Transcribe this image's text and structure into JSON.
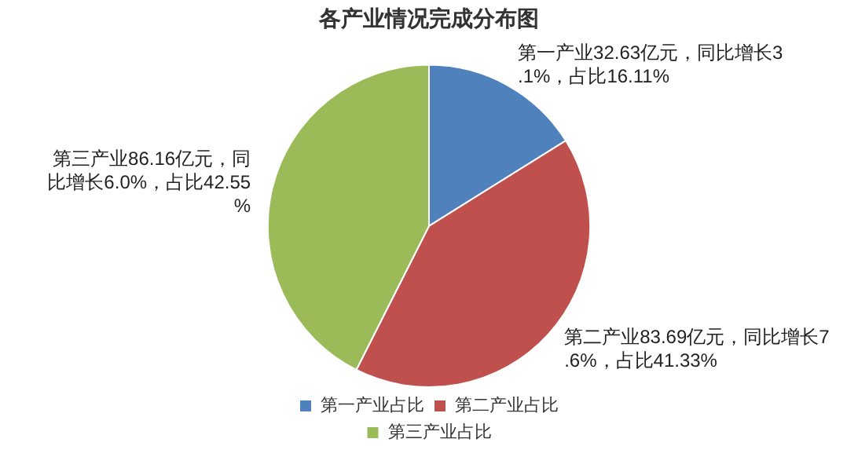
{
  "chart_data": {
    "type": "pie",
    "title": "各产业情况完成分布图",
    "categories": [
      "第一产业占比",
      "第二产业占比",
      "第三产业占比"
    ],
    "values": [
      16.11,
      41.33,
      42.55
    ],
    "colors": [
      "#4f81bd",
      "#c0504d",
      "#9bbb59"
    ],
    "value_labels": [
      "第一产业32.63亿元，同比增长3.1%，占比16.11%",
      "第二产业83.69亿元，同比增长7.6%，占比41.33%",
      "第三产业86.16亿元，同比增长6.0%，占比42.55%"
    ],
    "legend": "bottom"
  }
}
